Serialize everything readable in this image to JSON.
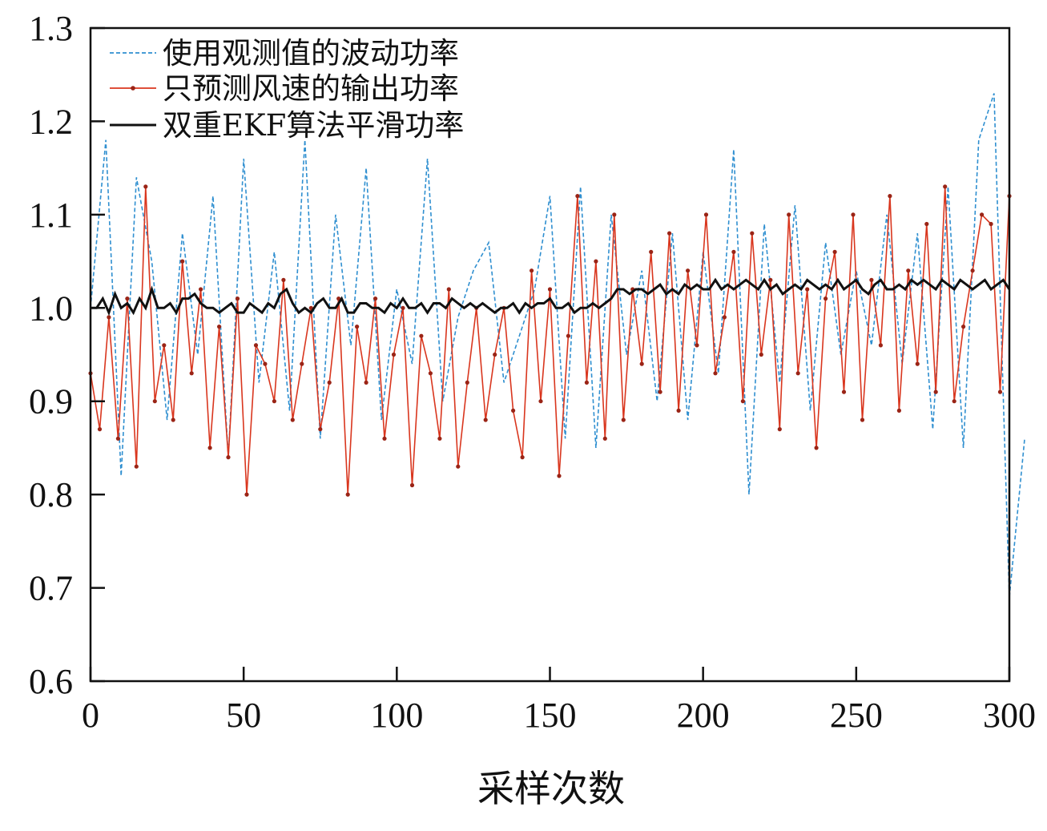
{
  "chart_data": {
    "type": "line",
    "title": "",
    "xlabel": "采样次数",
    "ylabel": "",
    "xlim": [
      0,
      300
    ],
    "ylim": [
      0.6,
      1.3
    ],
    "xticks": [
      0,
      50,
      100,
      150,
      200,
      250,
      300
    ],
    "yticks": [
      0.6,
      0.7,
      0.8,
      0.9,
      1.0,
      1.1,
      1.2,
      1.3
    ],
    "xtick_labels": [
      "0",
      "50",
      "100",
      "150",
      "200",
      "250",
      "300"
    ],
    "ytick_labels": [
      "0.6",
      "0.7",
      "0.8",
      "0.9",
      "1.0",
      "1.1",
      "1.2",
      "1.3"
    ],
    "grid": false,
    "legend_position": "top-left",
    "series": [
      {
        "name": "使用观测值的波动功率",
        "color": "#2f8fd0",
        "style": "dashed",
        "x_start": 0,
        "x_step": 5,
        "values": [
          1.0,
          1.18,
          0.82,
          1.14,
          1.05,
          0.88,
          1.08,
          0.95,
          1.12,
          0.84,
          1.16,
          0.92,
          1.06,
          0.89,
          1.18,
          0.86,
          1.1,
          0.96,
          1.15,
          0.88,
          1.02,
          0.94,
          1.16,
          0.9,
          0.99,
          1.04,
          1.07,
          0.92,
          0.97,
          1.02,
          1.12,
          0.86,
          1.13,
          0.85,
          1.1,
          0.95,
          1.04,
          0.9,
          1.08,
          0.88,
          1.06,
          0.93,
          1.17,
          0.8,
          1.09,
          0.92,
          1.11,
          0.89,
          1.07,
          0.95,
          1.04,
          0.96,
          1.1,
          0.94,
          1.08,
          0.87,
          1.13,
          0.85,
          1.18,
          1.23,
          0.69,
          0.86
        ]
      },
      {
        "name": "只预测风速的输出功率",
        "color": "#d9361e",
        "style": "solid-marker",
        "x_start": 0,
        "x_step": 3,
        "values": [
          0.93,
          0.87,
          0.99,
          0.86,
          1.01,
          0.83,
          1.13,
          0.9,
          0.96,
          0.88,
          1.05,
          0.93,
          1.02,
          0.85,
          0.98,
          0.84,
          1.01,
          0.8,
          0.96,
          0.94,
          0.9,
          1.03,
          0.88,
          0.94,
          1.0,
          0.87,
          0.92,
          1.01,
          0.8,
          0.98,
          0.92,
          1.01,
          0.86,
          0.95,
          1.0,
          0.81,
          0.97,
          0.93,
          0.86,
          1.02,
          0.83,
          0.92,
          1.0,
          0.88,
          0.95,
          1.0,
          0.89,
          0.84,
          1.04,
          0.9,
          1.02,
          0.82,
          0.97,
          1.12,
          0.92,
          1.05,
          0.86,
          1.1,
          0.88,
          1.02,
          0.94,
          1.06,
          0.91,
          1.08,
          0.89,
          1.04,
          0.96,
          1.1,
          0.93,
          0.99,
          1.06,
          0.9,
          1.08,
          0.95,
          1.03,
          0.87,
          1.1,
          0.93,
          1.02,
          0.85,
          1.01,
          1.06,
          0.91,
          1.1,
          0.88,
          1.03,
          0.96,
          1.12,
          0.89,
          1.04,
          0.94,
          1.09,
          0.91,
          1.13,
          0.9,
          0.98,
          1.04,
          1.1,
          1.09,
          0.91,
          1.12
        ]
      },
      {
        "name": "双重EKF算法平滑功率",
        "color": "#111111",
        "style": "solid",
        "x_start": 0,
        "x_step": 2,
        "values": [
          1.0,
          1.0,
          1.01,
          0.995,
          1.015,
          1.0,
          1.005,
          0.995,
          1.01,
          1.0,
          1.02,
          1.0,
          1.0,
          1.005,
          0.995,
          1.01,
          1.01,
          1.015,
          1.005,
          1.0,
          1.0,
          0.995,
          1.0,
          1.005,
          0.995,
          0.995,
          1.005,
          1.0,
          0.995,
          1.005,
          1.0,
          1.015,
          1.02,
          1.005,
          0.995,
          1.0,
          0.995,
          1.005,
          1.01,
          1.0,
          1.0,
          1.01,
          0.995,
          0.995,
          1.005,
          1.005,
          1.0,
          1.0,
          0.995,
          1.005,
          1.0,
          1.01,
          1.0,
          1.0,
          1.005,
          0.995,
          1.005,
          1.005,
          1.0,
          1.01,
          1.005,
          1.0,
          1.005,
          1.0,
          1.005,
          1.0,
          0.995,
          1.0,
          1.0,
          1.005,
          0.995,
          1.005,
          1.0,
          1.005,
          1.005,
          1.01,
          1.0,
          1.0,
          1.005,
          0.995,
          1.0,
          1.0,
          1.005,
          1.0,
          1.005,
          1.01,
          1.02,
          1.02,
          1.015,
          1.02,
          1.02,
          1.015,
          1.02,
          1.025,
          1.015,
          1.02,
          1.015,
          1.025,
          1.02,
          1.025,
          1.02,
          1.02,
          1.03,
          1.02,
          1.025,
          1.02,
          1.025,
          1.03,
          1.025,
          1.02,
          1.03,
          1.02,
          1.025,
          1.015,
          1.02,
          1.025,
          1.02,
          1.03,
          1.025,
          1.02,
          1.025,
          1.02,
          1.03,
          1.02,
          1.025,
          1.03,
          1.02,
          1.015,
          1.025,
          1.03,
          1.02,
          1.02,
          1.025,
          1.02,
          1.03,
          1.025,
          1.03,
          1.025,
          1.02,
          1.03,
          1.025,
          1.02,
          1.03,
          1.025,
          1.02,
          1.025,
          1.03,
          1.02,
          1.025,
          1.03,
          1.02
        ]
      }
    ]
  }
}
